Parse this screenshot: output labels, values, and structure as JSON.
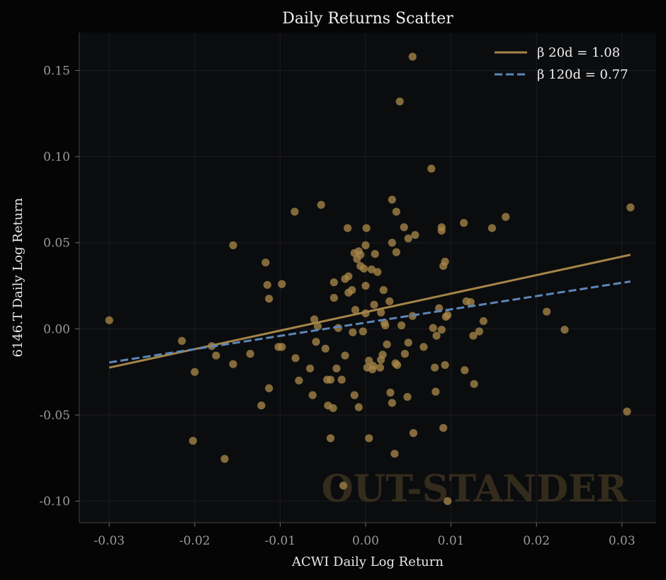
{
  "chart_data": {
    "type": "scatter",
    "title": "Daily Returns Scatter",
    "xlabel": "ACWI Daily Log Return",
    "ylabel": "6146.T Daily Log Return",
    "xlim": [
      -0.0335,
      0.034
    ],
    "ylim": [
      -0.1125,
      0.172
    ],
    "xticks": [
      -0.03,
      -0.02,
      -0.01,
      0.0,
      0.01,
      0.02,
      0.03
    ],
    "xtick_labels": [
      "-0.03",
      "-0.02",
      "-0.01",
      "0.00",
      "0.01",
      "0.02",
      "0.03"
    ],
    "yticks": [
      -0.1,
      -0.05,
      0.0,
      0.05,
      0.1,
      0.15
    ],
    "ytick_labels": [
      "-0.10",
      "-0.05",
      "0.00",
      "0.05",
      "0.10",
      "0.15"
    ],
    "grid": true,
    "legend_position": "top-right",
    "watermark": "OUT-STANDER",
    "colors": {
      "background": "#050505",
      "plot_background": "#0b0c0e",
      "grid": "#1c1d20",
      "points": "#a58548",
      "line_20d": "#a58548",
      "line_120d": "#5c86b8"
    },
    "lines": [
      {
        "name": "β 20d = 1.08",
        "style": "solid",
        "x": [
          -0.03,
          0.031
        ],
        "y": [
          -0.0225,
          0.043
        ]
      },
      {
        "name": "β 120d = 0.77",
        "style": "dashed",
        "x": [
          -0.03,
          0.031
        ],
        "y": [
          -0.0195,
          0.0275
        ]
      }
    ],
    "points": [
      [
        -0.03,
        0.005
      ],
      [
        -0.0215,
        -0.007
      ],
      [
        -0.02,
        -0.025
      ],
      [
        -0.0202,
        -0.065
      ],
      [
        -0.018,
        -0.01
      ],
      [
        -0.0175,
        -0.0155
      ],
      [
        -0.0165,
        -0.0755
      ],
      [
        -0.0155,
        0.0485
      ],
      [
        -0.0155,
        -0.0205
      ],
      [
        -0.0135,
        -0.0145
      ],
      [
        -0.0122,
        -0.0445
      ],
      [
        -0.0117,
        0.0385
      ],
      [
        -0.0115,
        0.0255
      ],
      [
        -0.0113,
        0.0175
      ],
      [
        -0.0113,
        -0.0345
      ],
      [
        -0.0102,
        -0.0105
      ],
      [
        -0.0098,
        0.026
      ],
      [
        -0.0098,
        -0.0105
      ],
      [
        -0.0083,
        0.068
      ],
      [
        -0.0082,
        -0.017
      ],
      [
        -0.0078,
        -0.03
      ],
      [
        -0.0065,
        -0.023
      ],
      [
        -0.0062,
        -0.0385
      ],
      [
        -0.006,
        0.0055
      ],
      [
        -0.0058,
        -0.0075
      ],
      [
        -0.0056,
        0.0015
      ],
      [
        -0.0052,
        0.072
      ],
      [
        -0.0047,
        -0.0115
      ],
      [
        -0.0045,
        -0.0295
      ],
      [
        -0.0044,
        -0.0445
      ],
      [
        -0.0041,
        -0.0295
      ],
      [
        -0.0041,
        -0.0635
      ],
      [
        -0.0038,
        -0.046
      ],
      [
        -0.0037,
        0.027
      ],
      [
        -0.0037,
        0.018
      ],
      [
        -0.0034,
        -0.023
      ],
      [
        -0.0032,
        0.0005
      ],
      [
        -0.0028,
        -0.0295
      ],
      [
        -0.0026,
        -0.091
      ],
      [
        -0.0024,
        0.029
      ],
      [
        -0.0024,
        -0.0155
      ],
      [
        -0.0021,
        0.0585
      ],
      [
        -0.002,
        0.0305
      ],
      [
        -0.002,
        0.021
      ],
      [
        -0.0016,
        0.0225
      ],
      [
        -0.0015,
        -0.002
      ],
      [
        -0.0013,
        0.044
      ],
      [
        -0.0013,
        -0.0385
      ],
      [
        -0.0012,
        0.011
      ],
      [
        -0.001,
        0.0405
      ],
      [
        -0.0008,
        0.045
      ],
      [
        -0.0008,
        -0.0455
      ],
      [
        -0.0006,
        0.043
      ],
      [
        -0.0006,
        0.0365
      ],
      [
        -0.0003,
        -0.0015
      ],
      [
        -0.0002,
        0.035
      ],
      [
        0.0,
        0.0485
      ],
      [
        0.0,
        0.025
      ],
      [
        0.0,
        0.009
      ],
      [
        0.0001,
        0.0585
      ],
      [
        0.0002,
        -0.0225
      ],
      [
        0.0004,
        -0.0635
      ],
      [
        0.0004,
        -0.0185
      ],
      [
        0.0007,
        0.0345
      ],
      [
        0.0008,
        -0.0235
      ],
      [
        0.0009,
        -0.0215
      ],
      [
        0.001,
        0.014
      ],
      [
        0.0011,
        0.0435
      ],
      [
        0.0014,
        0.033
      ],
      [
        0.0017,
        -0.0225
      ],
      [
        0.0018,
        -0.018
      ],
      [
        0.0018,
        0.0095
      ],
      [
        0.002,
        -0.015
      ],
      [
        0.0021,
        0.0225
      ],
      [
        0.0022,
        0.0035
      ],
      [
        0.0023,
        0.002
      ],
      [
        0.0025,
        -0.009
      ],
      [
        0.0028,
        0.016
      ],
      [
        0.0029,
        -0.037
      ],
      [
        0.0031,
        0.075
      ],
      [
        0.0031,
        -0.043
      ],
      [
        0.0031,
        0.05
      ],
      [
        0.0034,
        -0.0725
      ],
      [
        0.0035,
        -0.02
      ],
      [
        0.0036,
        0.068
      ],
      [
        0.0036,
        0.0445
      ],
      [
        0.0037,
        -0.021
      ],
      [
        0.004,
        0.132
      ],
      [
        0.0042,
        0.002
      ],
      [
        0.0045,
        0.059
      ],
      [
        0.0046,
        -0.0145
      ],
      [
        0.0049,
        -0.0395
      ],
      [
        0.005,
        0.0525
      ],
      [
        0.005,
        -0.008
      ],
      [
        0.0055,
        0.158
      ],
      [
        0.0055,
        0.0075
      ],
      [
        0.0056,
        -0.0605
      ],
      [
        0.0058,
        0.0545
      ],
      [
        0.0068,
        -0.0105
      ],
      [
        0.0077,
        0.093
      ],
      [
        0.0079,
        0.0005
      ],
      [
        0.0081,
        -0.0225
      ],
      [
        0.0082,
        -0.0365
      ],
      [
        0.0083,
        -0.004
      ],
      [
        0.0086,
        0.012
      ],
      [
        0.0089,
        -0.0005
      ],
      [
        0.0089,
        0.057
      ],
      [
        0.0089,
        0.059
      ],
      [
        0.0091,
        0.0365
      ],
      [
        0.0091,
        -0.0575
      ],
      [
        0.0093,
        0.039
      ],
      [
        0.0093,
        -0.021
      ],
      [
        0.0094,
        0.007
      ],
      [
        0.0096,
        0.008
      ],
      [
        0.0096,
        -0.1
      ],
      [
        0.0115,
        0.0615
      ],
      [
        0.0116,
        -0.024
      ],
      [
        0.0118,
        0.016
      ],
      [
        0.0123,
        0.0155
      ],
      [
        0.0126,
        -0.004
      ],
      [
        0.0127,
        -0.032
      ],
      [
        0.0133,
        -0.0015
      ],
      [
        0.0138,
        0.0045
      ],
      [
        0.0148,
        0.0585
      ],
      [
        0.0164,
        0.065
      ],
      [
        0.0212,
        0.01
      ],
      [
        0.0233,
        -0.0005
      ],
      [
        0.0306,
        -0.048
      ],
      [
        0.031,
        0.0705
      ]
    ]
  }
}
